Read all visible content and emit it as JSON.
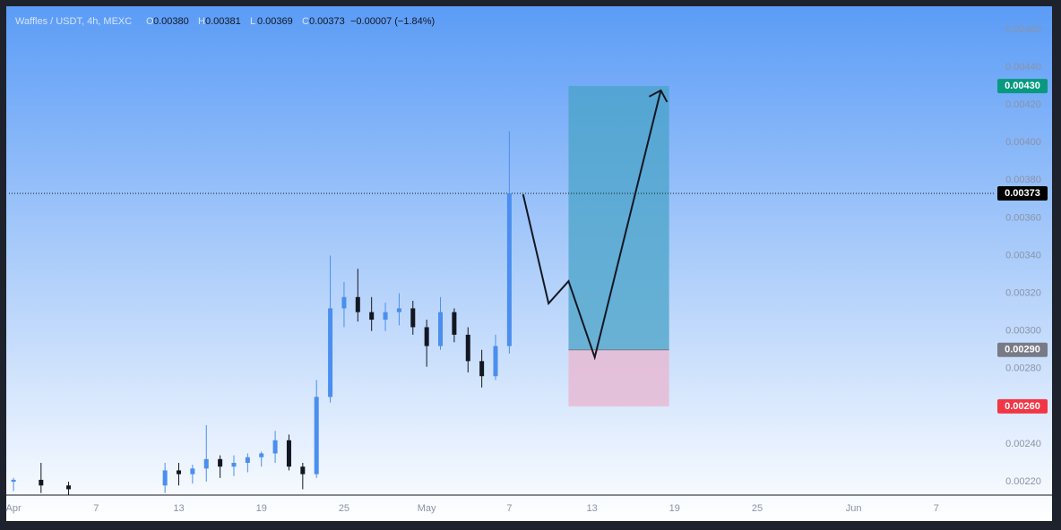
{
  "chart_data": {
    "type": "candlestick",
    "symbol": "Waffles / USDT, 4h, MEXC",
    "ohlc_legend": [
      {
        "key": "O",
        "text": "0.00380"
      },
      {
        "key": "H",
        "text": "0.00381"
      },
      {
        "key": "L",
        "text": "0.00369"
      },
      {
        "key": "C",
        "text": "0.00373"
      }
    ],
    "change": "−0.00007 (−1.84%)",
    "up_color": "#4a8ef0",
    "down_color": "#131722",
    "x": [
      0,
      2,
      4,
      11,
      12,
      13,
      14,
      15,
      16,
      17,
      18,
      19,
      20,
      21,
      22,
      23,
      24,
      25,
      26,
      27,
      28,
      29,
      30,
      31,
      32,
      33,
      34,
      35,
      36
    ],
    "open": [
      0.0022,
      0.00221,
      0.00218,
      0.00218,
      0.00226,
      0.00224,
      0.00227,
      0.00232,
      0.00228,
      0.0023,
      0.00233,
      0.00235,
      0.00242,
      0.00228,
      0.00224,
      0.00265,
      0.00312,
      0.00318,
      0.0031,
      0.00306,
      0.0031,
      0.00312,
      0.00302,
      0.00292,
      0.0031,
      0.00298,
      0.00284,
      0.00276,
      0.00292
    ],
    "high": [
      0.00222,
      0.0023,
      0.0022,
      0.0023,
      0.0023,
      0.00229,
      0.0025,
      0.00234,
      0.00234,
      0.00235,
      0.00236,
      0.00247,
      0.00245,
      0.0023,
      0.00274,
      0.0034,
      0.00326,
      0.00333,
      0.00318,
      0.00315,
      0.0032,
      0.00316,
      0.00306,
      0.00318,
      0.00312,
      0.00302,
      0.0029,
      0.00298,
      0.00406
    ],
    "low": [
      0.00215,
      0.00214,
      0.00213,
      0.00214,
      0.00218,
      0.00219,
      0.0022,
      0.00222,
      0.00223,
      0.00225,
      0.00228,
      0.0023,
      0.00226,
      0.00216,
      0.00222,
      0.00262,
      0.00302,
      0.00305,
      0.003,
      0.003,
      0.00303,
      0.00298,
      0.00281,
      0.0029,
      0.00294,
      0.00278,
      0.0027,
      0.00274,
      0.00288
    ],
    "close": [
      0.00221,
      0.00218,
      0.00216,
      0.00226,
      0.00224,
      0.00227,
      0.00232,
      0.00228,
      0.0023,
      0.00233,
      0.00235,
      0.00242,
      0.00228,
      0.00224,
      0.00265,
      0.00312,
      0.00318,
      0.0031,
      0.00306,
      0.0031,
      0.00312,
      0.00302,
      0.00292,
      0.0031,
      0.00298,
      0.00284,
      0.00276,
      0.00292,
      0.00373
    ],
    "xlim": [
      -0.33,
      71.24
    ],
    "xticks": [
      {
        "value": 0,
        "label": "Apr"
      },
      {
        "value": 6,
        "label": "7"
      },
      {
        "value": 12,
        "label": "13"
      },
      {
        "value": 18,
        "label": "19"
      },
      {
        "value": 24,
        "label": "25"
      },
      {
        "value": 30,
        "label": "May"
      },
      {
        "value": 36,
        "label": "7"
      },
      {
        "value": 42,
        "label": "13"
      },
      {
        "value": 48,
        "label": "19"
      },
      {
        "value": 54,
        "label": "25"
      },
      {
        "value": 61,
        "label": "Jun"
      },
      {
        "value": 67,
        "label": "7"
      }
    ],
    "ylim": [
      0.002129,
      0.004709
    ],
    "yticks": [
      {
        "value": 0.0046,
        "label": "0.00460"
      },
      {
        "value": 0.0044,
        "label": "0.00440"
      },
      {
        "value": 0.0042,
        "label": "0.00420"
      },
      {
        "value": 0.004,
        "label": "0.00400"
      },
      {
        "value": 0.0038,
        "label": "0.00380"
      },
      {
        "value": 0.0036,
        "label": "0.00360"
      },
      {
        "value": 0.0034,
        "label": "0.00340"
      },
      {
        "value": 0.0032,
        "label": "0.00320"
      },
      {
        "value": 0.003,
        "label": "0.00300"
      },
      {
        "value": 0.0028,
        "label": "0.00280"
      },
      {
        "value": 0.0026,
        "label": "0.00260"
      },
      {
        "value": 0.0024,
        "label": "0.00240"
      },
      {
        "value": 0.0022,
        "label": "0.00220"
      }
    ],
    "last_price": 0.00373,
    "price_labels": [
      {
        "value": 0.0043,
        "label": "0.00430",
        "color": "#089981"
      },
      {
        "value": 0.00373,
        "label": "0.00373",
        "color": "#000000"
      },
      {
        "value": 0.0029,
        "label": "0.00290",
        "color": "#787b86"
      },
      {
        "value": 0.0026,
        "label": "0.00260",
        "color": "#f23645"
      }
    ],
    "position": {
      "x": [
        40.3,
        47.6
      ],
      "target": 0.0043,
      "entry": 0.0029,
      "stop": 0.0026,
      "target_color": "#4aa3c8",
      "stop_color": "#e6bcd6"
    },
    "projection": {
      "x": [
        37.0,
        38.85,
        40.3,
        42.2,
        47.0
      ],
      "y": [
        0.003725,
        0.003146,
        0.003264,
        0.00286,
        0.004277
      ]
    }
  }
}
